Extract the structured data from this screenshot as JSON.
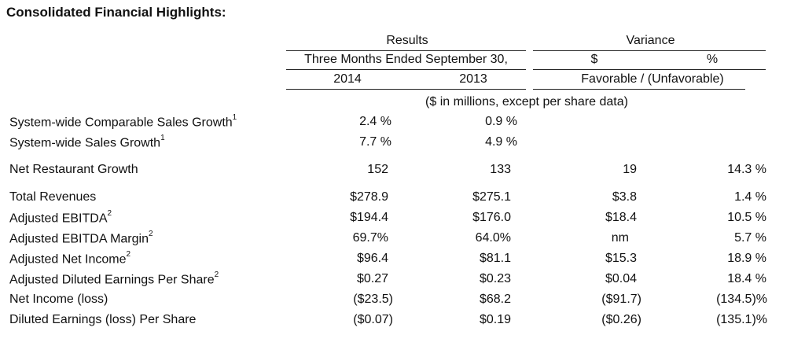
{
  "title": "Consolidated Financial Highlights:",
  "header": {
    "results": "Results",
    "variance": "Variance",
    "period": "Three Months Ended September 30,",
    "dollar": "$",
    "percent": "%",
    "year1": "2014",
    "year2": "2013",
    "fav": "Favorable / (Unfavorable)",
    "units": "($ in millions, except per share data)"
  },
  "rows": [
    {
      "label": "System-wide Comparable Sales Growth",
      "note": "1",
      "y2014": "2.4 %",
      "y2013": "0.9 %",
      "var_d": "",
      "var_p": ""
    },
    {
      "label": "System-wide Sales Growth",
      "note": "1",
      "y2014": "7.7 %",
      "y2013": "4.9 %",
      "var_d": "",
      "var_p": ""
    },
    {
      "label": "Net Restaurant Growth",
      "note": "",
      "y2014": "152",
      "y2013": "133",
      "var_d": "19",
      "var_p": "14.3 %"
    },
    {
      "label": "Total Revenues",
      "note": "",
      "y2014": "$278.9",
      "y2013": "$275.1",
      "var_d": "$3.8",
      "var_p": "1.4 %"
    },
    {
      "label": "Adjusted EBITDA",
      "note": "2",
      "y2014": "$194.4",
      "y2013": "$176.0",
      "var_d": "$18.4",
      "var_p": "10.5 %"
    },
    {
      "label": "Adjusted EBITDA Margin",
      "note": "2",
      "y2014": "69.7%",
      "y2013": "64.0%",
      "var_d": "nm",
      "var_p": "5.7 %"
    },
    {
      "label": "Adjusted Net Income",
      "note": "2",
      "y2014": "$96.4",
      "y2013": "$81.1",
      "var_d": "$15.3",
      "var_p": "18.9 %"
    },
    {
      "label": "Adjusted Diluted Earnings Per Share",
      "note": "2",
      "y2014": "$0.27",
      "y2013": "$0.23",
      "var_d": "$0.04",
      "var_p": "18.4 %"
    },
    {
      "label": "Net Income (loss)",
      "note": "",
      "y2014": "($23.5)",
      "y2013": "$68.2",
      "var_d": "($91.7)",
      "var_p": "(134.5)%"
    },
    {
      "label": "Diluted Earnings (loss) Per Share",
      "note": "",
      "y2014": "($0.07)",
      "y2013": "$0.19",
      "var_d": "($0.26)",
      "var_p": "(135.1)%"
    }
  ]
}
